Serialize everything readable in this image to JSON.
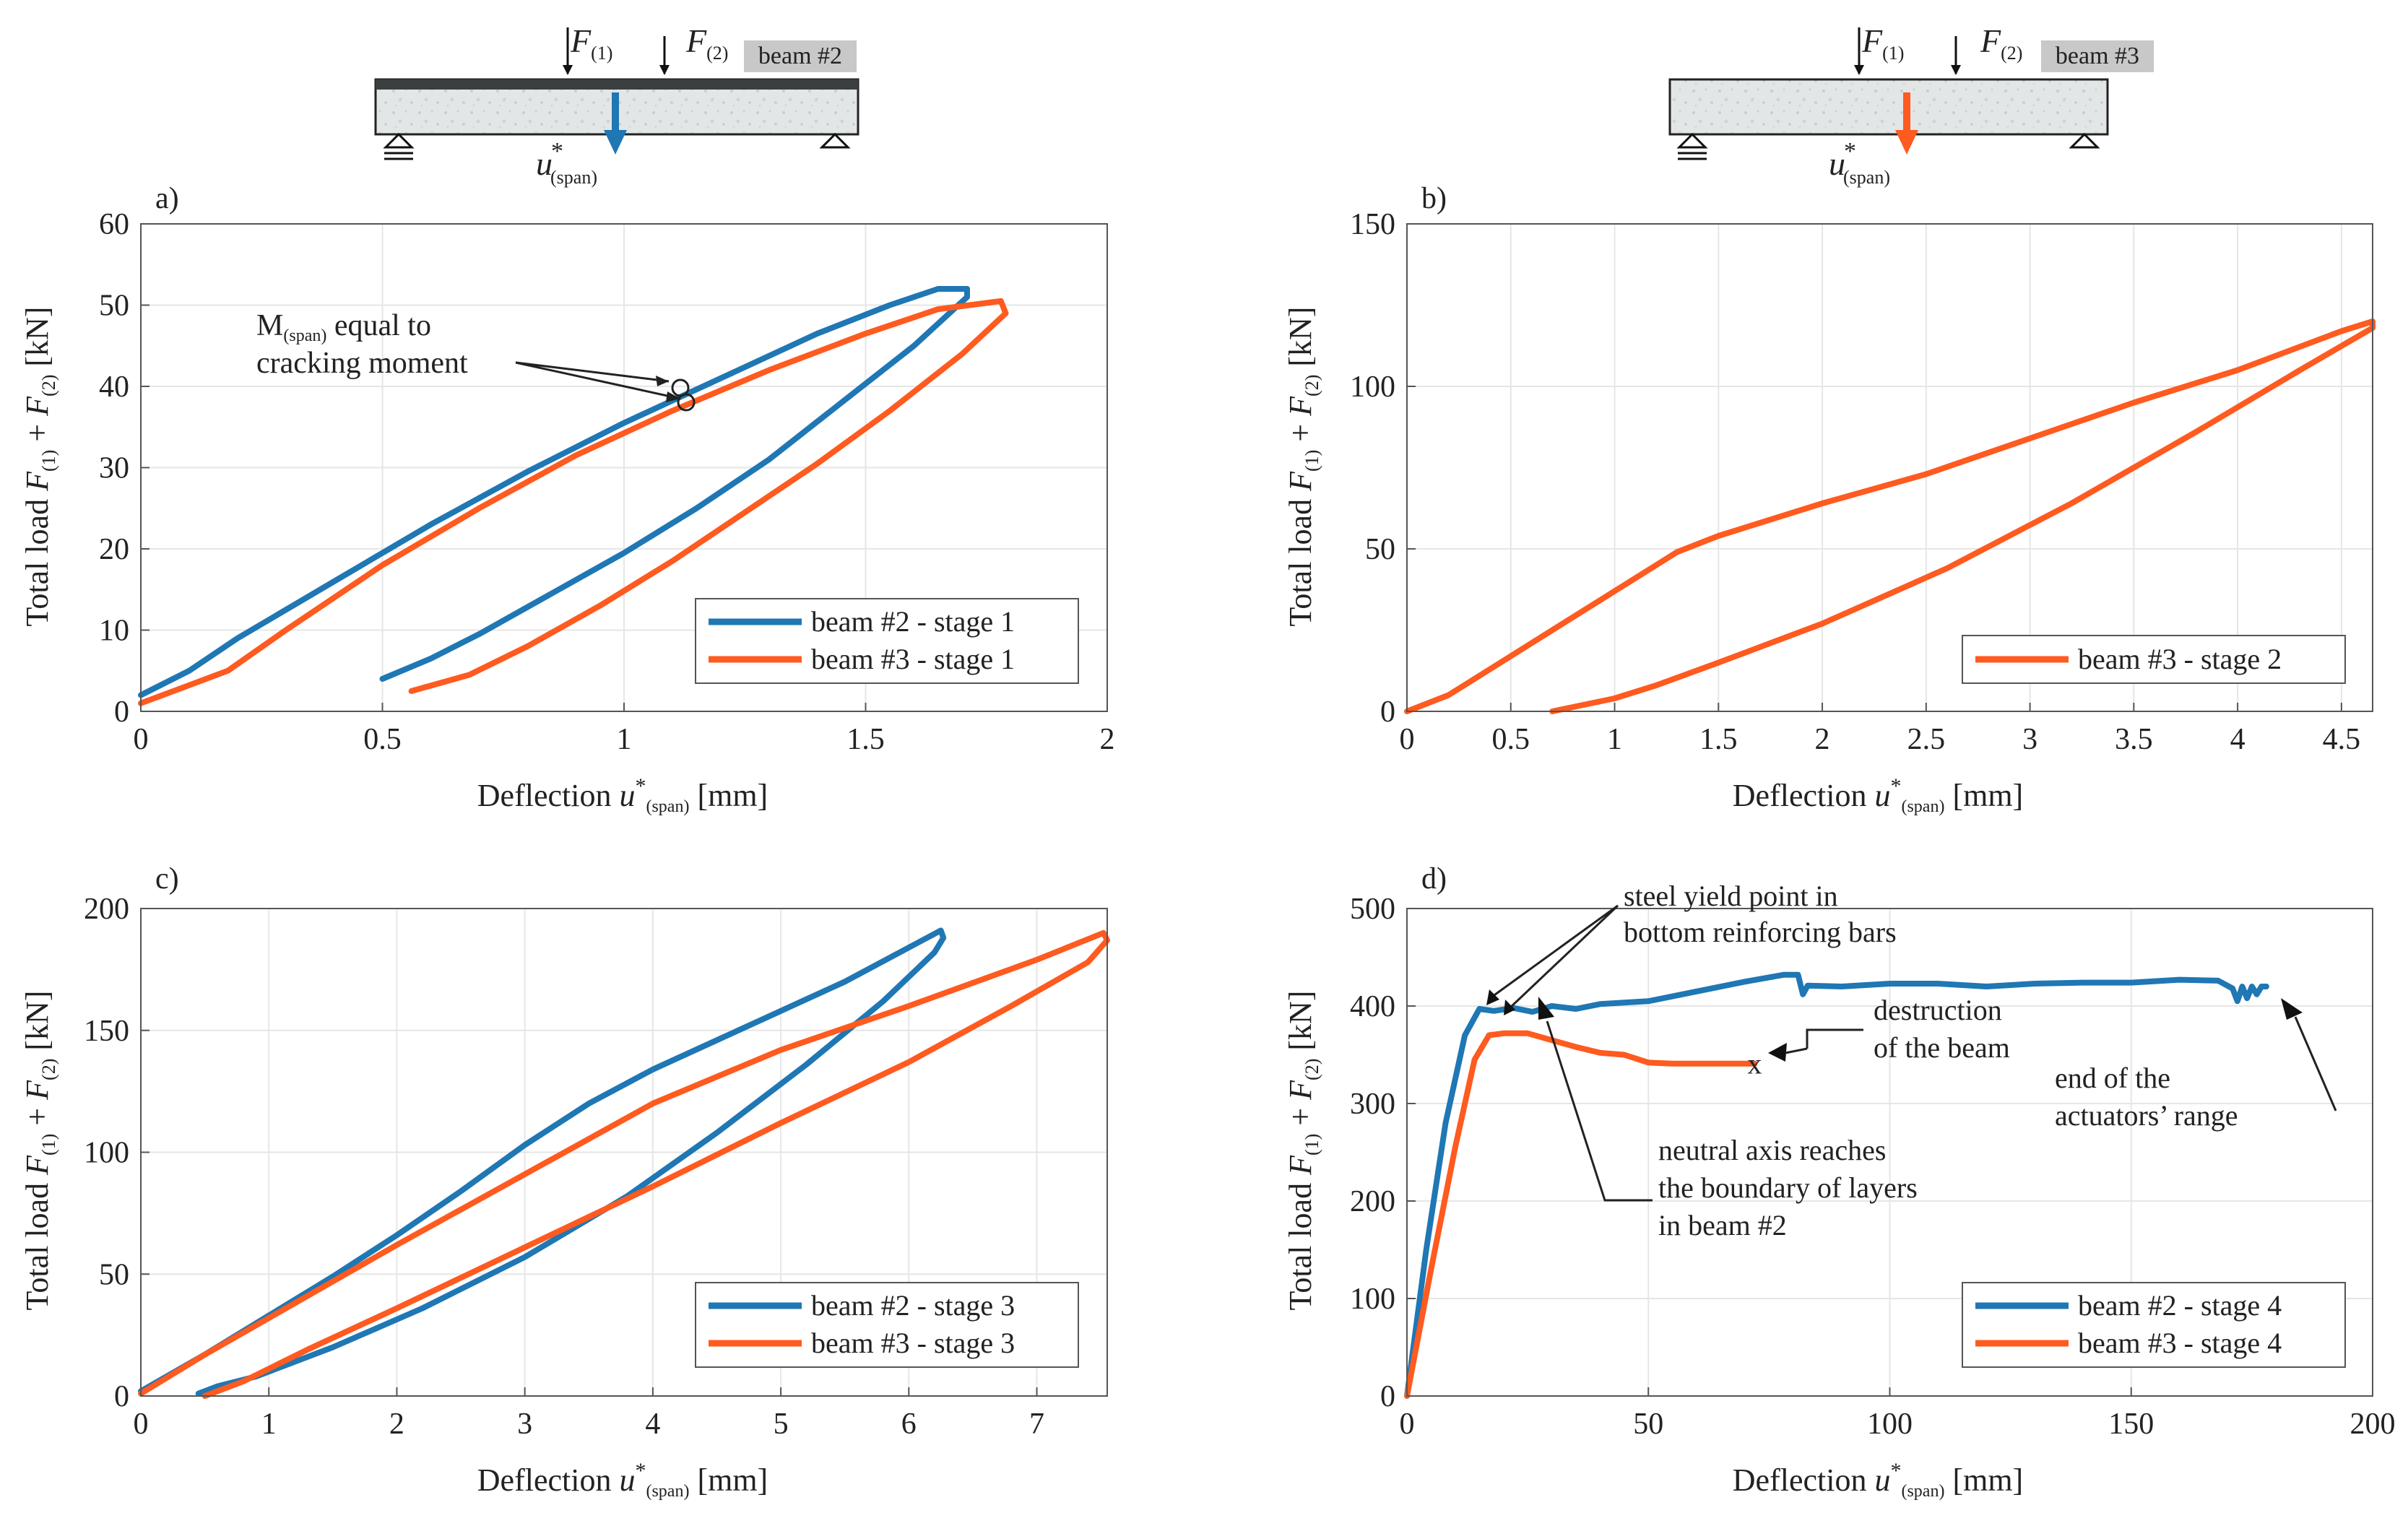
{
  "colors": {
    "blue": "#1f77b4",
    "orange": "#ff5a1f",
    "grid": "#e6e6e6",
    "axis": "#555555",
    "text": "#222222"
  },
  "schematics": [
    {
      "force1_label": "F(1)",
      "force1_main": "F",
      "force1_sub": "(1)",
      "force2_label": "F(2)",
      "force2_main": "F",
      "force2_sub": "(2)",
      "beam_tag": "beam #2",
      "deflection_label": "u*(span)",
      "deflection_main": "u",
      "deflection_sup": "*",
      "deflection_sub": "(span)",
      "arrow_color": "#1f77b4",
      "has_top_layer": true
    },
    {
      "force1_label": "F(1)",
      "force1_main": "F",
      "force1_sub": "(1)",
      "force2_label": "F(2)",
      "force2_main": "F",
      "force2_sub": "(2)",
      "beam_tag": "beam #3",
      "deflection_label": "u*(span)",
      "deflection_main": "u",
      "deflection_sup": "*",
      "deflection_sub": "(span)",
      "arrow_color": "#ff5a1f",
      "has_top_layer": false
    }
  ],
  "chart_data": [
    {
      "id": "a",
      "panel_label": "a)",
      "type": "line",
      "xlabel": "Deflection u*(span) [mm]",
      "xlabel_pre": "Deflection ",
      "xlabel_u": "u",
      "xlabel_star": "*",
      "xlabel_sub": "(span)",
      "xlabel_post": " [mm]",
      "ylabel": "Total load F(1) + F(2) [kN]",
      "ylabel_pre": "Total load ",
      "ylabel_f1": "F",
      "ylabel_s1": "(1)",
      "ylabel_plus": " + ",
      "ylabel_f2": "F",
      "ylabel_s2": "(2)",
      "ylabel_post": " [kN]",
      "xlim": [
        0,
        2
      ],
      "ylim": [
        0,
        60
      ],
      "xticks": [
        0,
        0.5,
        1,
        1.5,
        2
      ],
      "xtick_labels": [
        "0",
        "0.5",
        "1",
        "1.5",
        "2"
      ],
      "yticks": [
        0,
        10,
        20,
        30,
        40,
        50,
        60
      ],
      "ytick_labels": [
        "0",
        "10",
        "20",
        "30",
        "40",
        "50",
        "60"
      ],
      "grid": true,
      "legend_position": "bottom-right",
      "series": [
        {
          "name": "beam #2 - stage 1",
          "color": "#1f77b4",
          "x": [
            0,
            0.1,
            0.2,
            0.4,
            0.6,
            0.8,
            1.0,
            1.2,
            1.4,
            1.55,
            1.65,
            1.71,
            1.71,
            1.6,
            1.45,
            1.3,
            1.15,
            1.0,
            0.85,
            0.7,
            0.6,
            0.5
          ],
          "y": [
            2,
            5,
            9,
            16,
            23,
            29.5,
            35.5,
            41,
            46.5,
            50,
            52,
            52,
            51,
            45,
            38,
            31,
            25,
            19.5,
            14.5,
            9.5,
            6.5,
            4
          ]
        },
        {
          "name": "beam #3 - stage 1",
          "color": "#ff5a1f",
          "x": [
            0,
            0.18,
            0.3,
            0.5,
            0.7,
            0.9,
            1.1,
            1.3,
            1.5,
            1.65,
            1.78,
            1.79,
            1.7,
            1.55,
            1.4,
            1.25,
            1.1,
            0.95,
            0.8,
            0.68,
            0.56
          ],
          "y": [
            1,
            5,
            10,
            18,
            25,
            31.5,
            37,
            42,
            46.5,
            49.5,
            50.5,
            49,
            44,
            37,
            30.5,
            24.5,
            18.5,
            13,
            8,
            4.5,
            2.5
          ]
        }
      ],
      "annotations": [
        {
          "text": "M(span) equal to cracking moment",
          "line1_main": "M",
          "line1_sub": "(span)",
          "line1_post": " equal to",
          "line2": "cracking moment"
        }
      ]
    },
    {
      "id": "b",
      "panel_label": "b)",
      "type": "line",
      "xlabel": "Deflection u*(span) [mm]",
      "xlabel_pre": "Deflection ",
      "xlabel_u": "u",
      "xlabel_star": "*",
      "xlabel_sub": "(span)",
      "xlabel_post": " [mm]",
      "ylabel": "Total load F(1) + F(2) [kN]",
      "ylabel_pre": "Total load ",
      "ylabel_f1": "F",
      "ylabel_s1": "(1)",
      "ylabel_plus": " + ",
      "ylabel_f2": "F",
      "ylabel_s2": "(2)",
      "ylabel_post": " [kN]",
      "xlim": [
        0,
        4.65
      ],
      "ylim": [
        0,
        150
      ],
      "xticks": [
        0,
        0.5,
        1,
        1.5,
        2,
        2.5,
        3,
        3.5,
        4,
        4.5
      ],
      "xtick_labels": [
        "0",
        "0.5",
        "1",
        "1.5",
        "2",
        "2.5",
        "3",
        "3.5",
        "4",
        "4.5"
      ],
      "yticks": [
        0,
        50,
        100,
        150
      ],
      "ytick_labels": [
        "0",
        "50",
        "100",
        "150"
      ],
      "grid": true,
      "legend_position": "bottom-right",
      "series": [
        {
          "name": "beam #3 - stage 2",
          "color": "#ff5a1f",
          "x": [
            0,
            0.2,
            0.5,
            0.8,
            1.1,
            1.3,
            1.5,
            2.0,
            2.5,
            3.0,
            3.5,
            4.0,
            4.5,
            4.65,
            4.65,
            4.3,
            3.8,
            3.2,
            2.6,
            2.0,
            1.5,
            1.2,
            1.0,
            0.85,
            0.7
          ],
          "y": [
            0,
            5,
            17,
            29,
            41,
            49,
            54,
            64,
            73,
            84,
            95,
            105,
            117,
            120,
            118,
            105,
            86,
            64,
            44,
            27,
            15,
            8,
            4,
            2,
            0
          ]
        }
      ]
    },
    {
      "id": "c",
      "panel_label": "c)",
      "type": "line",
      "xlabel": "Deflection u*(span) [mm]",
      "xlabel_pre": "Deflection ",
      "xlabel_u": "u",
      "xlabel_star": "*",
      "xlabel_sub": "(span)",
      "xlabel_post": " [mm]",
      "ylabel": "Total load F(1) + F(2) [kN]",
      "ylabel_pre": "Total load ",
      "ylabel_f1": "F",
      "ylabel_s1": "(1)",
      "ylabel_plus": " + ",
      "ylabel_f2": "F",
      "ylabel_s2": "(2)",
      "ylabel_post": " [kN]",
      "xlim": [
        0,
        7.55
      ],
      "ylim": [
        0,
        200
      ],
      "xticks": [
        0,
        1,
        2,
        3,
        4,
        5,
        6,
        7
      ],
      "xtick_labels": [
        "0",
        "1",
        "2",
        "3",
        "4",
        "5",
        "6",
        "7"
      ],
      "yticks": [
        0,
        50,
        100,
        150,
        200
      ],
      "ytick_labels": [
        "0",
        "50",
        "100",
        "150",
        "200"
      ],
      "grid": true,
      "legend_position": "bottom-right",
      "series": [
        {
          "name": "beam #2 - stage 3",
          "color": "#1f77b4",
          "x": [
            0,
            0.5,
            1.0,
            1.5,
            2.0,
            2.5,
            3.0,
            3.5,
            4.0,
            4.5,
            5.0,
            5.5,
            6.0,
            6.25,
            6.27,
            6.2,
            5.8,
            5.2,
            4.5,
            3.8,
            3.0,
            2.2,
            1.5,
            0.9,
            0.6,
            0.45
          ],
          "y": [
            2,
            17,
            33,
            49,
            66,
            84,
            103,
            120,
            134,
            146,
            158,
            170,
            184,
            191,
            188,
            182,
            162,
            136,
            108,
            82,
            57,
            36,
            20,
            8,
            4,
            1
          ]
        },
        {
          "name": "beam #3 - stage 3",
          "color": "#ff5a1f",
          "x": [
            0,
            0.5,
            1.0,
            2.0,
            3.0,
            4.0,
            5.0,
            6.0,
            7.0,
            7.52,
            7.55,
            7.4,
            6.8,
            6.0,
            5.0,
            4.0,
            3.0,
            2.0,
            1.3,
            0.8,
            0.5
          ],
          "y": [
            1,
            17,
            32,
            62,
            91,
            120,
            142,
            160,
            179,
            190,
            187,
            178,
            160,
            137,
            112,
            86,
            61,
            36,
            19,
            6,
            0
          ]
        }
      ]
    },
    {
      "id": "d",
      "panel_label": "d)",
      "type": "line",
      "xlabel": "Deflection u*(span) [mm]",
      "xlabel_pre": "Deflection ",
      "xlabel_u": "u",
      "xlabel_star": "*",
      "xlabel_sub": "(span)",
      "xlabel_post": " [mm]",
      "ylabel": "Total load F(1) + F(2) [kN]",
      "ylabel_pre": "Total load ",
      "ylabel_f1": "F",
      "ylabel_s1": "(1)",
      "ylabel_plus": " + ",
      "ylabel_f2": "F",
      "ylabel_s2": "(2)",
      "ylabel_post": " [kN]",
      "xlim": [
        0,
        200
      ],
      "ylim": [
        0,
        500
      ],
      "xticks": [
        0,
        50,
        100,
        150,
        200
      ],
      "xtick_labels": [
        "0",
        "50",
        "100",
        "150",
        "200"
      ],
      "yticks": [
        0,
        100,
        200,
        300,
        400,
        500
      ],
      "ytick_labels": [
        "0",
        "100",
        "200",
        "300",
        "400",
        "500"
      ],
      "grid": true,
      "legend_position": "bottom-right",
      "series": [
        {
          "name": "beam #2 - stage 4",
          "color": "#1f77b4",
          "x": [
            0,
            4,
            8,
            12,
            15,
            18,
            22,
            26,
            30,
            35,
            40,
            50,
            60,
            70,
            78,
            81,
            82,
            83,
            90,
            100,
            110,
            120,
            130,
            140,
            150,
            160,
            168,
            171,
            172,
            173,
            174,
            175,
            176,
            177,
            178
          ],
          "y": [
            0,
            150,
            280,
            370,
            397,
            395,
            398,
            394,
            400,
            397,
            402,
            405,
            415,
            425,
            432,
            432,
            412,
            421,
            420,
            423,
            423,
            420,
            423,
            424,
            424,
            427,
            426,
            418,
            405,
            420,
            408,
            420,
            412,
            420,
            420
          ]
        },
        {
          "name": "beam #3 - stage 4",
          "color": "#ff5a1f",
          "x": [
            0,
            5,
            10,
            14,
            17,
            20,
            25,
            30,
            35,
            40,
            45,
            50,
            55,
            60,
            65,
            70,
            72
          ],
          "y": [
            0,
            130,
            255,
            345,
            370,
            372,
            372,
            365,
            358,
            352,
            350,
            342,
            341,
            341,
            341,
            341,
            341
          ]
        }
      ],
      "markers": [
        {
          "label": "x",
          "x": 72,
          "y": 341
        }
      ],
      "annotations": [
        {
          "text": "steel yield point in bottom reinforcing bars",
          "lines": [
            "steel yield point in",
            "bottom reinforcing bars"
          ]
        },
        {
          "text": "destruction of the beam",
          "lines": [
            "destruction",
            "of the beam"
          ]
        },
        {
          "text": "end of the actuators' range",
          "lines": [
            "end of the",
            "actuators’ range"
          ]
        },
        {
          "text": "neutral axis reaches the boundary of layers in beam #2",
          "lines": [
            "neutral axis reaches",
            "the boundary of layers",
            "in beam #2"
          ]
        }
      ]
    }
  ]
}
